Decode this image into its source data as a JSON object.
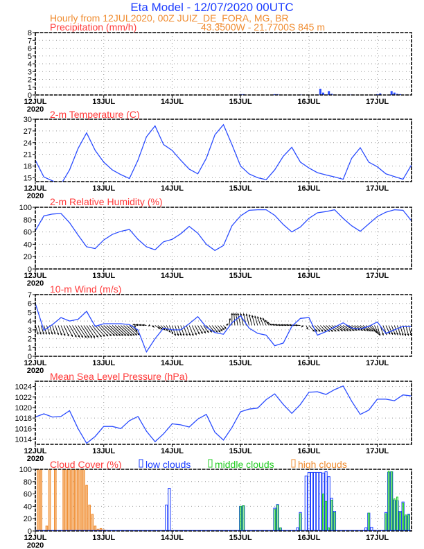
{
  "header": {
    "title": "Eta Model - 12/07/2020 00UTC",
    "subtitle": "Hourly from 12JUL2020, 00Z  JUIZ_DE_FORA, MG, BR",
    "location": "43.3500W - 21.7700S    845  m"
  },
  "colors": {
    "line": "#2a4cff",
    "low": "#1a3cff",
    "middle": "#22cc22",
    "high": "#f08c30",
    "title": "#ff3a3a",
    "arrow": "#000000"
  },
  "x_axis": {
    "day_labels": [
      "12JUL",
      "13JUL",
      "14JUL",
      "15JUL",
      "16JUL",
      "17JUL"
    ],
    "year_label": "2020",
    "hours_total": 132,
    "step_hours": 3
  },
  "chart_data": [
    {
      "type": "bar",
      "id": "precip",
      "title": "Precipitation (mm/h)",
      "ylabel": "mm/h",
      "ylim": [
        0,
        8
      ],
      "yticks": [
        "0",
        "1",
        "2",
        "3",
        "4",
        "5",
        "6",
        "7",
        "8"
      ],
      "bars": [
        [
          72,
          0.1
        ],
        [
          73,
          0.1
        ],
        [
          84,
          0.1
        ],
        [
          85,
          0.1
        ],
        [
          93,
          0.05
        ],
        [
          100,
          0.8
        ],
        [
          101,
          0.3
        ],
        [
          103,
          0.5
        ],
        [
          104,
          0.15
        ],
        [
          111,
          0.05
        ],
        [
          120,
          0.1
        ],
        [
          121,
          0.2
        ],
        [
          125,
          0.5
        ],
        [
          126,
          0.3
        ],
        [
          127,
          0.15
        ],
        [
          128,
          0.1
        ]
      ]
    },
    {
      "type": "line",
      "id": "temp",
      "title": "2-m Temperature (C)",
      "ylim": [
        14,
        30
      ],
      "yticks": [
        "15",
        "18",
        "21",
        "24",
        "27",
        "30"
      ],
      "values": [
        19.5,
        15.2,
        14.2,
        13.3,
        17.0,
        22.5,
        26.5,
        22.0,
        19.0,
        17.0,
        15.8,
        14.8,
        19.5,
        25.5,
        28.3,
        23.5,
        22.0,
        19.5,
        17.2,
        16.0,
        20.0,
        26.0,
        28.6,
        23.5,
        18.0,
        16.0,
        15.0,
        14.5,
        17.0,
        20.5,
        22.8,
        19.0,
        17.5,
        16.3,
        15.7,
        15.2,
        14.6,
        20.0,
        22.7,
        19.0,
        17.8,
        16.0,
        15.3,
        14.6,
        18.3
      ]
    },
    {
      "type": "line",
      "id": "rh",
      "title": "2-m Relative Humidity (%)",
      "ylim": [
        0,
        100
      ],
      "yticks": [
        "0",
        "20",
        "40",
        "60",
        "80",
        "100"
      ],
      "values": [
        62,
        86,
        89,
        90,
        75,
        55,
        36,
        33,
        47,
        56,
        61,
        64,
        48,
        36,
        31,
        44,
        48,
        57,
        69,
        58,
        40,
        30,
        38,
        70,
        86,
        95,
        96,
        96,
        87,
        72,
        60,
        68,
        82,
        91,
        93,
        96,
        82,
        70,
        61,
        73,
        85,
        92,
        96,
        95,
        78
      ]
    },
    {
      "type": "line",
      "id": "wind",
      "title": "10-m Wind (m/s)",
      "ylim": [
        0,
        7
      ],
      "yticks": [
        "0",
        "1",
        "2",
        "3",
        "4",
        "5",
        "6",
        "7"
      ],
      "values": [
        6.0,
        2.95,
        3.6,
        4.4,
        4.0,
        4.2,
        5.1,
        3.4,
        3.7,
        3.7,
        3.7,
        3.6,
        3.0,
        0.5,
        2.0,
        3.2,
        3.0,
        3.0,
        3.7,
        4.5,
        3.3,
        2.7,
        2.5,
        3.8,
        4.6,
        3.2,
        2.6,
        2.4,
        1.2,
        1.5,
        3.4,
        4.3,
        4.4,
        2.4,
        2.8,
        3.3,
        3.8,
        3.2,
        3.1,
        3.4,
        3.9,
        2.6,
        3.0,
        3.4,
        3.4
      ],
      "vector_base": 3.5,
      "vectors": [
        [
          0.8,
          -2.6
        ],
        [
          0.8,
          -2.6
        ],
        [
          0.8,
          -2.6
        ],
        [
          1.2,
          -3.0
        ],
        [
          2.0,
          -3.4
        ],
        [
          2.4,
          -3.6
        ],
        [
          2.4,
          -3.6
        ],
        [
          2.8,
          -3.2
        ],
        [
          3.2,
          -3.0
        ],
        [
          3.2,
          -3.0
        ],
        [
          3.2,
          -3.0
        ],
        [
          3.0,
          -2.8
        ],
        [
          -1.5,
          0.3
        ],
        [
          -1.2,
          0.2
        ],
        [
          1.5,
          -1.0
        ],
        [
          1.2,
          -1.6
        ],
        [
          1.0,
          -3.0
        ],
        [
          1.0,
          -3.0
        ],
        [
          1.2,
          -3.0
        ],
        [
          1.4,
          -2.4
        ],
        [
          1.6,
          -2.0
        ],
        [
          1.6,
          -2.0
        ],
        [
          0.8,
          -1.0
        ],
        [
          0,
          3.6
        ],
        [
          -0.8,
          3.6
        ],
        [
          -0.8,
          3.4
        ],
        [
          -0.8,
          2.8
        ],
        [
          -1.0,
          2.2
        ],
        [
          -1.6,
          0.4
        ],
        [
          -1.6,
          0.2
        ],
        [
          -1.6,
          0.2
        ],
        [
          -1.6,
          0.1
        ],
        [
          1.6,
          -1.8
        ],
        [
          1.6,
          -1.8
        ],
        [
          2.0,
          -1.8
        ],
        [
          2.4,
          -1.6
        ],
        [
          2.4,
          -1.6
        ],
        [
          2.4,
          -1.4
        ],
        [
          2.4,
          -1.6
        ],
        [
          2.0,
          -1.8
        ],
        [
          0.8,
          -3.0
        ],
        [
          1.2,
          -2.6
        ],
        [
          1.0,
          -2.8
        ],
        [
          0.8,
          -3.0
        ],
        [
          0.8,
          -3.0
        ]
      ]
    },
    {
      "type": "line",
      "id": "mslp",
      "title": "Mean Sea Level Pressure (hPa)",
      "ylim": [
        1013,
        1025
      ],
      "yticks": [
        "1014",
        "1016",
        "1018",
        "1020",
        "1022",
        "1024"
      ],
      "values": [
        1018.2,
        1018.8,
        1018.2,
        1018.3,
        1019.4,
        1016.0,
        1013.2,
        1014.5,
        1016.4,
        1016.4,
        1016.0,
        1017.5,
        1018.3,
        1015.5,
        1013.5,
        1015.0,
        1016.9,
        1016.7,
        1016.3,
        1017.8,
        1018.7,
        1015.3,
        1013.8,
        1016.2,
        1019.2,
        1019.7,
        1019.9,
        1021.5,
        1022.6,
        1020.6,
        1018.9,
        1020.6,
        1022.9,
        1023.0,
        1022.5,
        1023.4,
        1024.1,
        1021.2,
        1018.7,
        1019.5,
        1021.6,
        1021.6,
        1021.3,
        1022.4,
        1022.2
      ]
    },
    {
      "type": "bar",
      "id": "cloud",
      "title": "Cloud Cover (%)",
      "ylim": [
        0,
        100
      ],
      "yticks": [
        "0",
        "20",
        "40",
        "60",
        "80",
        "100"
      ],
      "legend": {
        "low": "low clouds",
        "middle": "middle clouds",
        "high": "high clouds"
      },
      "high": [
        [
          1,
          100
        ],
        [
          2,
          100
        ],
        [
          4,
          8
        ],
        [
          5,
          100
        ],
        [
          7,
          100
        ],
        [
          10,
          100
        ],
        [
          11,
          100
        ],
        [
          12,
          100
        ],
        [
          13,
          100
        ],
        [
          14,
          100
        ],
        [
          15,
          100
        ],
        [
          16,
          100
        ],
        [
          17,
          100
        ],
        [
          18,
          74
        ],
        [
          19,
          42
        ],
        [
          20,
          27
        ],
        [
          21,
          8
        ],
        [
          22,
          3
        ],
        [
          23,
          4
        ],
        [
          24,
          2
        ],
        [
          25,
          1
        ]
      ],
      "middle": [
        [
          72,
          40
        ],
        [
          73,
          41
        ],
        [
          84,
          35
        ],
        [
          85,
          42
        ],
        [
          86,
          5
        ],
        [
          93,
          28
        ],
        [
          101,
          60
        ],
        [
          102,
          48
        ],
        [
          103,
          5
        ],
        [
          104,
          50
        ],
        [
          105,
          30
        ],
        [
          117,
          29
        ],
        [
          123,
          28
        ],
        [
          124,
          97
        ],
        [
          125,
          96
        ],
        [
          126,
          52
        ],
        [
          127,
          55
        ],
        [
          128,
          30
        ],
        [
          129,
          45
        ],
        [
          130,
          26
        ],
        [
          131,
          26
        ]
      ],
      "low": [
        [
          46,
          42
        ],
        [
          47,
          69
        ],
        [
          72,
          40
        ],
        [
          73,
          41
        ],
        [
          84,
          37
        ],
        [
          85,
          43
        ],
        [
          86,
          5
        ],
        [
          92,
          5
        ],
        [
          93,
          30
        ],
        [
          95,
          89
        ],
        [
          96,
          95
        ],
        [
          97,
          95
        ],
        [
          98,
          95
        ],
        [
          99,
          95
        ],
        [
          100,
          95
        ],
        [
          101,
          94
        ],
        [
          102,
          96
        ],
        [
          103,
          88
        ],
        [
          104,
          53
        ],
        [
          105,
          32
        ],
        [
          116,
          5
        ],
        [
          117,
          29
        ],
        [
          118,
          6
        ],
        [
          123,
          30
        ],
        [
          124,
          95
        ],
        [
          125,
          96
        ],
        [
          126,
          50
        ],
        [
          127,
          49
        ],
        [
          128,
          32
        ],
        [
          129,
          47
        ],
        [
          130,
          24
        ],
        [
          131,
          27
        ]
      ]
    }
  ]
}
